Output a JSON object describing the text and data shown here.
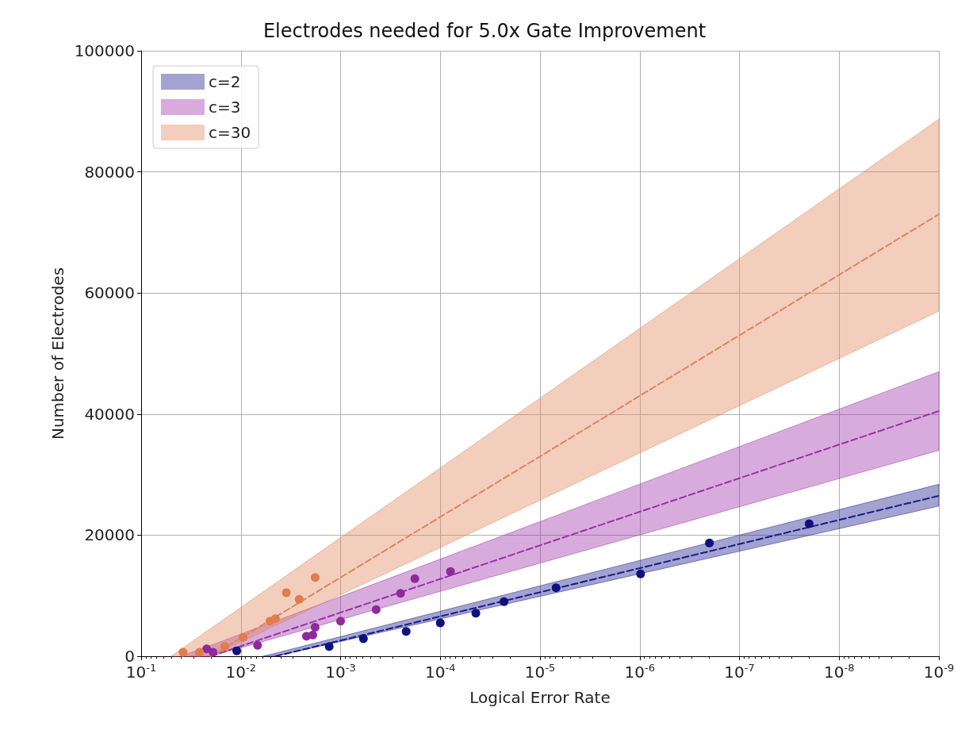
{
  "chart_data": {
    "type": "line",
    "title": "Electrodes needed for 5.0x Gate Improvement",
    "xlabel": "Logical Error Rate",
    "ylabel": "Number of Electrodes",
    "log": "x",
    "grid": true,
    "legend": "top left",
    "xlim": [
      0.1,
      1e-09
    ],
    "xticks": [
      {
        "value": 0.1,
        "label": "10$^{-1}$"
      },
      {
        "value": 0.01,
        "label": "10$^{-2}$"
      },
      {
        "value": 0.001,
        "label": "10$^{-3}$"
      },
      {
        "value": 0.0001,
        "label": "10$^{-4}$"
      },
      {
        "value": 1e-05,
        "label": "10$^{-5}$"
      },
      {
        "value": 1e-06,
        "label": "10$^{-6}$"
      },
      {
        "value": 1e-07,
        "label": "10$^{-7}$"
      },
      {
        "value": 1e-08,
        "label": "10$^{-8}$"
      },
      {
        "value": 1e-09,
        "label": "10$^{-9}$"
      }
    ],
    "ylim": [
      0,
      100000
    ],
    "yticks": [
      0,
      20000,
      40000,
      60000,
      80000,
      100000
    ],
    "series": [
      {
        "name": "c=2",
        "color": "#1a1a8c",
        "line_style": "dashed",
        "marker": "none",
        "x": [
          0.006,
          0.0045,
          1e-09
        ],
        "values": [
          null,
          0,
          26500
        ],
        "lower": [
          0,
          0,
          24800
        ],
        "upper": [
          0,
          500,
          28400
        ]
      },
      {
        "name": "c=3",
        "color": "#9b30a8",
        "line_style": "dashed",
        "marker": "none",
        "x": [
          0.04,
          0.02,
          1e-09
        ],
        "values": [
          null,
          0,
          40500
        ],
        "lower": [
          0,
          0,
          34000
        ],
        "upper": [
          0,
          1800,
          47000
        ]
      },
      {
        "name": "c=30",
        "color": "#e0845a",
        "line_style": "dashed",
        "marker": "none",
        "x": [
          0.05,
          0.02,
          1e-09
        ],
        "values": [
          null,
          0,
          73000
        ],
        "lower": [
          0,
          0,
          57000
        ],
        "upper": [
          0,
          4600,
          88700
        ]
      },
      {
        "type": "scatter",
        "color": "#10107e",
        "marker": "circle",
        "x": [
          0.011,
          0.0013,
          0.00059,
          0.00022,
          0.0001,
          4.4e-05,
          2.3e-05,
          6.9e-06,
          9.8e-07,
          2e-07,
          2e-08
        ],
        "values": [
          900,
          1600,
          2900,
          4100,
          5500,
          7100,
          9000,
          11300,
          13600,
          18700,
          21900
        ]
      },
      {
        "type": "scatter",
        "color": "#8e2a9c",
        "marker": "circle",
        "x": [
          0.022,
          0.019,
          0.0068,
          0.0022,
          0.0019,
          0.0018,
          0.001,
          0.00044,
          0.00025,
          0.00018,
          7.9e-05
        ],
        "values": [
          1200,
          650,
          1800,
          3300,
          3500,
          4800,
          5800,
          7700,
          10400,
          12800,
          14000
        ]
      },
      {
        "type": "scatter",
        "color": "#e07c4e",
        "marker": "circle",
        "x": [
          0.038,
          0.026,
          0.0145,
          0.0095,
          0.0051,
          0.0045,
          0.0035,
          0.0026,
          0.0018
        ],
        "values": [
          650,
          650,
          1600,
          3100,
          5800,
          6200,
          10500,
          9400,
          13000
        ]
      }
    ]
  }
}
